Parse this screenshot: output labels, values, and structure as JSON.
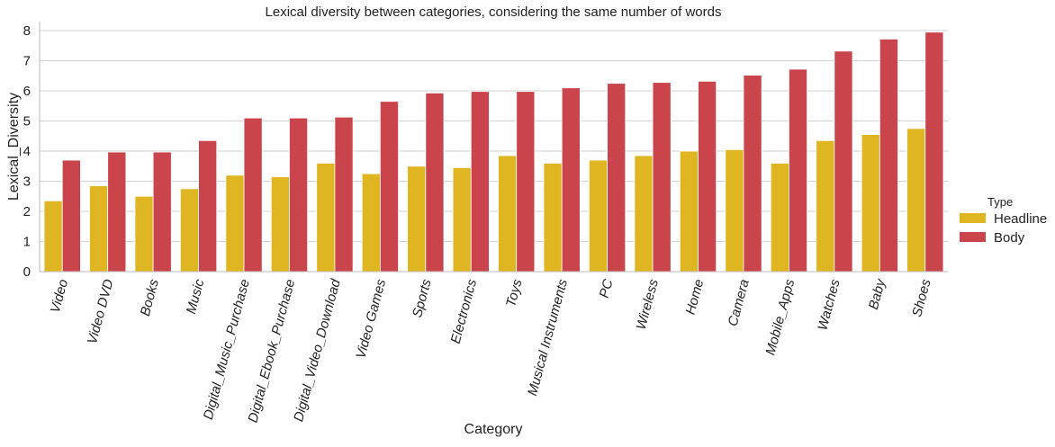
{
  "chart_data": {
    "type": "bar",
    "title": "Lexical diversity between categories, considering the same number of words",
    "xlabel": "Category",
    "ylabel": "Lexical_Diversity",
    "ylim": [
      0,
      8.3
    ],
    "yticks": [
      0,
      1,
      2,
      3,
      4,
      5,
      6,
      7,
      8
    ],
    "grid": true,
    "legend_title": "Type",
    "legend_position": "right",
    "categories": [
      "Video",
      "Video DVD",
      "Books",
      "Music",
      "Digital_Music_Purchase",
      "Digital_Ebook_Purchase",
      "Digital_Video_Download",
      "Video Games",
      "Sports",
      "Electronics",
      "Toys",
      "Musical Instruments",
      "PC",
      "Wireless",
      "Home",
      "Camera",
      "Mobile_Apps",
      "Watches",
      "Baby",
      "Shoes"
    ],
    "series": [
      {
        "name": "Headline",
        "color": "#e0b522",
        "values": [
          2.35,
          2.85,
          2.5,
          2.75,
          3.2,
          3.15,
          3.6,
          3.25,
          3.5,
          3.45,
          3.85,
          3.6,
          3.7,
          3.85,
          4.0,
          4.05,
          3.6,
          4.35,
          4.55,
          4.75
        ]
      },
      {
        "name": "Body",
        "color": "#c9454b",
        "values": [
          3.7,
          3.97,
          3.97,
          4.35,
          5.1,
          5.1,
          5.13,
          5.65,
          5.93,
          5.98,
          5.98,
          6.1,
          6.25,
          6.28,
          6.32,
          6.52,
          6.72,
          7.32,
          7.72,
          7.95
        ]
      }
    ]
  }
}
